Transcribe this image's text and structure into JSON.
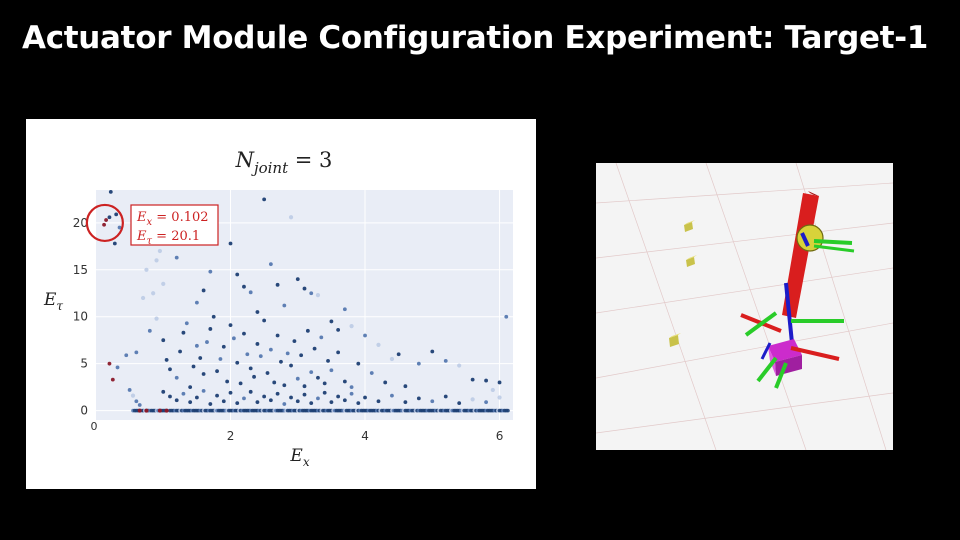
{
  "slide": {
    "title": "Actuator Module Configuration Experiment: Target-1"
  },
  "chart_data": {
    "type": "scatter",
    "title": "N_joint = 3",
    "xlabel": "E_x",
    "ylabel": "E_τ",
    "xlim": [
      0,
      6.2
    ],
    "ylim": [
      -1,
      23.5
    ],
    "x_ticks": [
      2,
      4,
      6
    ],
    "y_ticks": [
      0,
      5,
      10,
      15,
      20
    ],
    "origin_label": "0",
    "grid": true,
    "annotation": {
      "x": 0.102,
      "y": 20.1,
      "line1": "E_x = 0.102",
      "line2": "E_τ = 20.1",
      "color": "#cc2222"
    },
    "colors": {
      "dark": "#1d3f73",
      "mid": "#5679b0",
      "light": "#b7c7e4",
      "highlight": "#8b1a2a"
    },
    "points": [
      [
        0.12,
        19.8,
        3
      ],
      [
        0.15,
        20.3,
        3
      ],
      [
        0.2,
        20.6,
        0
      ],
      [
        0.3,
        20.9,
        0
      ],
      [
        0.22,
        23.3,
        0
      ],
      [
        0.28,
        17.8,
        0
      ],
      [
        0.35,
        19.5,
        1
      ],
      [
        0.2,
        5,
        3
      ],
      [
        0.25,
        3.3,
        3
      ],
      [
        0.32,
        4.6,
        1
      ],
      [
        0.45,
        5.9,
        1
      ],
      [
        0.6,
        6.2,
        1
      ],
      [
        0.8,
        8.5,
        1
      ],
      [
        0.9,
        9.8,
        2
      ],
      [
        1.1,
        19.5,
        0
      ],
      [
        1.2,
        16.3,
        1
      ],
      [
        1.4,
        18.2,
        0
      ],
      [
        1.5,
        11.5,
        1
      ],
      [
        1.6,
        12.8,
        0
      ],
      [
        1.7,
        14.8,
        1
      ],
      [
        2.0,
        17.8,
        0
      ],
      [
        2.1,
        14.5,
        0
      ],
      [
        2.2,
        13.2,
        0
      ],
      [
        2.3,
        12.6,
        1
      ],
      [
        2.4,
        10.5,
        0
      ],
      [
        2.5,
        22.5,
        0
      ],
      [
        2.6,
        15.6,
        1
      ],
      [
        2.7,
        13.4,
        0
      ],
      [
        2.8,
        11.2,
        1
      ],
      [
        2.9,
        20.6,
        2
      ],
      [
        3.0,
        14.0,
        0
      ],
      [
        3.1,
        13.0,
        0
      ],
      [
        3.2,
        12.5,
        1
      ],
      [
        3.3,
        12.3,
        2
      ],
      [
        3.5,
        9.5,
        0
      ],
      [
        3.6,
        8.6,
        0
      ],
      [
        3.7,
        10.8,
        1
      ],
      [
        3.8,
        9.0,
        2
      ],
      [
        4.0,
        8.0,
        1
      ],
      [
        4.2,
        7.0,
        2
      ],
      [
        4.5,
        6.0,
        0
      ],
      [
        4.8,
        5.0,
        1
      ],
      [
        5.0,
        6.3,
        0
      ],
      [
        5.2,
        5.3,
        1
      ],
      [
        5.4,
        4.8,
        2
      ],
      [
        5.6,
        3.3,
        0
      ],
      [
        5.8,
        3.2,
        0
      ],
      [
        6.0,
        3.0,
        0
      ],
      [
        6.1,
        10.0,
        1
      ],
      [
        5.9,
        2.2,
        2
      ],
      [
        1.0,
        7.5,
        0
      ],
      [
        1.05,
        5.4,
        0
      ],
      [
        1.1,
        4.4,
        0
      ],
      [
        1.2,
        3.5,
        1
      ],
      [
        1.25,
        6.3,
        0
      ],
      [
        1.3,
        8.3,
        0
      ],
      [
        1.35,
        9.3,
        1
      ],
      [
        1.4,
        2.5,
        0
      ],
      [
        1.45,
        4.7,
        0
      ],
      [
        1.5,
        6.9,
        1
      ],
      [
        1.55,
        5.6,
        0
      ],
      [
        1.6,
        3.9,
        0
      ],
      [
        1.65,
        7.3,
        1
      ],
      [
        1.7,
        8.7,
        0
      ],
      [
        1.75,
        10.0,
        0
      ],
      [
        1.8,
        4.2,
        0
      ],
      [
        1.85,
        5.5,
        1
      ],
      [
        1.9,
        6.8,
        0
      ],
      [
        1.95,
        3.1,
        0
      ],
      [
        2.0,
        9.1,
        0
      ],
      [
        2.05,
        7.7,
        1
      ],
      [
        2.1,
        5.1,
        0
      ],
      [
        2.15,
        2.9,
        0
      ],
      [
        2.2,
        8.2,
        0
      ],
      [
        2.25,
        6.0,
        1
      ],
      [
        2.3,
        4.5,
        0
      ],
      [
        2.35,
        3.6,
        0
      ],
      [
        2.4,
        7.1,
        0
      ],
      [
        2.45,
        5.8,
        1
      ],
      [
        2.5,
        9.6,
        0
      ],
      [
        2.55,
        4.0,
        0
      ],
      [
        2.6,
        6.5,
        1
      ],
      [
        2.65,
        3.0,
        0
      ],
      [
        2.7,
        8.0,
        0
      ],
      [
        2.75,
        5.2,
        0
      ],
      [
        2.8,
        2.7,
        0
      ],
      [
        2.85,
        6.1,
        1
      ],
      [
        2.9,
        4.8,
        0
      ],
      [
        2.95,
        7.4,
        0
      ],
      [
        3.0,
        3.4,
        1
      ],
      [
        3.05,
        5.9,
        0
      ],
      [
        3.1,
        2.6,
        0
      ],
      [
        3.15,
        8.5,
        0
      ],
      [
        3.2,
        4.1,
        1
      ],
      [
        3.25,
        6.6,
        0
      ],
      [
        3.3,
        3.5,
        0
      ],
      [
        3.35,
        7.8,
        1
      ],
      [
        3.4,
        2.9,
        0
      ],
      [
        3.45,
        5.3,
        0
      ],
      [
        3.5,
        4.3,
        1
      ],
      [
        3.6,
        6.2,
        0
      ],
      [
        3.7,
        3.1,
        0
      ],
      [
        3.8,
        2.5,
        1
      ],
      [
        3.9,
        5.0,
        0
      ],
      [
        4.1,
        4.0,
        1
      ],
      [
        4.3,
        3.0,
        0
      ],
      [
        4.4,
        5.5,
        2
      ],
      [
        4.6,
        2.6,
        0
      ],
      [
        0.5,
        2.2,
        1
      ],
      [
        0.55,
        1.6,
        2
      ],
      [
        0.6,
        1.0,
        1
      ],
      [
        0.65,
        0.6,
        1
      ],
      [
        0.7,
        12.0,
        2
      ],
      [
        0.75,
        15.0,
        2
      ],
      [
        0.8,
        18.5,
        2
      ],
      [
        0.85,
        12.5,
        2
      ],
      [
        0.9,
        16.0,
        2
      ],
      [
        0.95,
        17.0,
        2
      ],
      [
        1.0,
        13.5,
        2
      ],
      [
        1.0,
        2.0,
        0
      ],
      [
        1.1,
        1.5,
        0
      ],
      [
        1.2,
        1.1,
        0
      ],
      [
        1.3,
        1.8,
        1
      ],
      [
        1.4,
        0.9,
        0
      ],
      [
        1.5,
        1.4,
        0
      ],
      [
        1.6,
        2.1,
        1
      ],
      [
        1.7,
        0.7,
        0
      ],
      [
        1.8,
        1.6,
        0
      ],
      [
        1.9,
        1.0,
        0
      ],
      [
        2.0,
        1.9,
        0
      ],
      [
        2.1,
        0.8,
        0
      ],
      [
        2.2,
        1.3,
        1
      ],
      [
        2.3,
        2.0,
        0
      ],
      [
        2.4,
        0.9,
        0
      ],
      [
        2.5,
        1.5,
        0
      ],
      [
        2.6,
        1.1,
        0
      ],
      [
        2.7,
        1.8,
        0
      ],
      [
        2.8,
        0.7,
        1
      ],
      [
        2.9,
        1.4,
        0
      ],
      [
        3.0,
        1.0,
        0
      ],
      [
        3.1,
        1.7,
        0
      ],
      [
        3.2,
        0.8,
        0
      ],
      [
        3.3,
        1.3,
        1
      ],
      [
        3.4,
        1.9,
        0
      ],
      [
        3.5,
        0.9,
        0
      ],
      [
        3.6,
        1.5,
        0
      ],
      [
        3.7,
        1.1,
        0
      ],
      [
        3.8,
        1.8,
        1
      ],
      [
        3.9,
        0.8,
        0
      ],
      [
        4.0,
        1.4,
        0
      ],
      [
        4.2,
        1.0,
        0
      ],
      [
        4.4,
        1.6,
        1
      ],
      [
        4.6,
        0.9,
        0
      ],
      [
        4.8,
        1.3,
        0
      ],
      [
        5.0,
        1.0,
        1
      ],
      [
        5.2,
        1.5,
        0
      ],
      [
        5.4,
        0.8,
        0
      ],
      [
        5.6,
        1.2,
        2
      ],
      [
        5.8,
        0.9,
        1
      ],
      [
        6.0,
        1.4,
        2
      ]
    ],
    "zero_row": {
      "from": 0.55,
      "to": 6.15,
      "step": 0.025
    },
    "zero_highlights": [
      0.65,
      0.75,
      0.95,
      1.05
    ]
  }
}
